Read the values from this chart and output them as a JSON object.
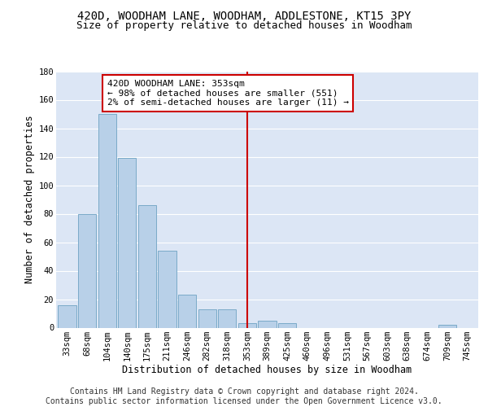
{
  "title1": "420D, WOODHAM LANE, WOODHAM, ADDLESTONE, KT15 3PY",
  "title2": "Size of property relative to detached houses in Woodham",
  "xlabel": "Distribution of detached houses by size in Woodham",
  "ylabel": "Number of detached properties",
  "footnote1": "Contains HM Land Registry data © Crown copyright and database right 2024.",
  "footnote2": "Contains public sector information licensed under the Open Government Licence v3.0.",
  "bin_labels": [
    "33sqm",
    "68sqm",
    "104sqm",
    "140sqm",
    "175sqm",
    "211sqm",
    "246sqm",
    "282sqm",
    "318sqm",
    "353sqm",
    "389sqm",
    "425sqm",
    "460sqm",
    "496sqm",
    "531sqm",
    "567sqm",
    "603sqm",
    "638sqm",
    "674sqm",
    "709sqm",
    "745sqm"
  ],
  "bar_values": [
    16,
    80,
    150,
    119,
    86,
    54,
    23,
    13,
    13,
    3,
    5,
    3,
    0,
    0,
    0,
    0,
    0,
    0,
    0,
    2,
    0
  ],
  "bar_color": "#b8d0e8",
  "bar_edge_color": "#7aaac8",
  "vline_index": 9,
  "vline_color": "#cc0000",
  "annotation_text": "420D WOODHAM LANE: 353sqm\n← 98% of detached houses are smaller (551)\n2% of semi-detached houses are larger (11) →",
  "annotation_box_facecolor": "#ffffff",
  "annotation_box_edgecolor": "#cc0000",
  "ylim": [
    0,
    180
  ],
  "yticks": [
    0,
    20,
    40,
    60,
    80,
    100,
    120,
    140,
    160,
    180
  ],
  "background_color": "#dce6f5",
  "grid_color": "#ffffff",
  "title1_fontsize": 10,
  "title2_fontsize": 9,
  "axis_label_fontsize": 8.5,
  "tick_fontsize": 7.5,
  "annotation_fontsize": 8,
  "footnote_fontsize": 7
}
